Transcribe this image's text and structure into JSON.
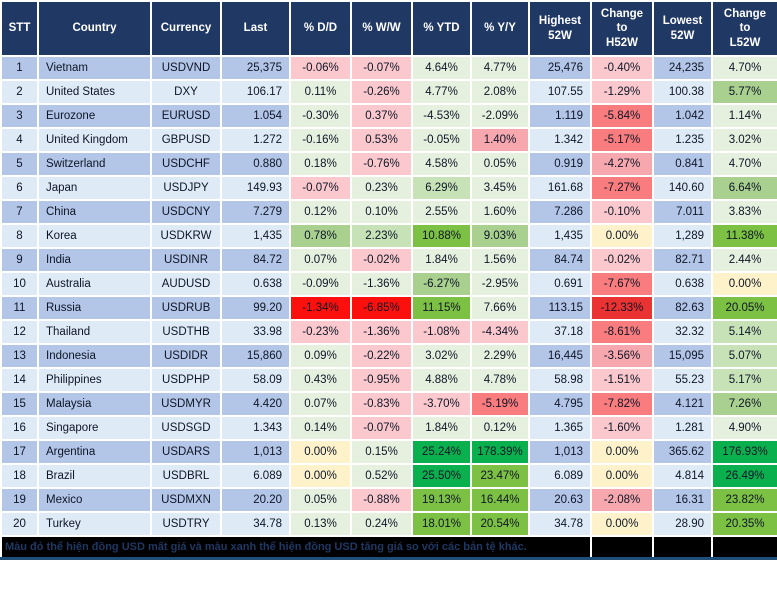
{
  "palette": {
    "header_bg": "#203864",
    "header_text": "#ffffff",
    "row_odd": "#b4c6e7",
    "row_even": "#deeaf6",
    "border": "#ffffff",
    "footer_bg": "#000000",
    "footer_text": "#1f3864",
    "p1": "#fbc9cd",
    "p2": "#f7a8ae",
    "p3": "#f97c7e",
    "p4": "#fc100d",
    "p5": "#e93231",
    "g1": "#e5f0de",
    "g2": "#c8e2b8",
    "g3": "#a9d08e",
    "g4": "#7cc143",
    "g5": "#0ab04e",
    "y": "#fef2cb"
  },
  "table": {
    "columns": [
      {
        "key": "stt",
        "label": "STT",
        "type": "stt"
      },
      {
        "key": "country",
        "label": "Country",
        "type": "country"
      },
      {
        "key": "currency",
        "label": "Currency",
        "type": "currency"
      },
      {
        "key": "last",
        "label": "Last",
        "type": "num"
      },
      {
        "key": "dd",
        "label": "% D/D",
        "type": "pct"
      },
      {
        "key": "ww",
        "label": "% W/W",
        "type": "pct"
      },
      {
        "key": "ytd",
        "label": "% YTD",
        "type": "pct"
      },
      {
        "key": "yy",
        "label": "% Y/Y",
        "type": "pct"
      },
      {
        "key": "high",
        "label": "Highest\n52W",
        "type": "num"
      },
      {
        "key": "chg_h",
        "label": "Change\nto\nH52W",
        "type": "pct"
      },
      {
        "key": "low",
        "label": "Lowest\n52W",
        "type": "num"
      },
      {
        "key": "chg_l",
        "label": "Change\nto\nL52W",
        "type": "pct"
      }
    ],
    "rows": [
      {
        "stt": "1",
        "country": "Vietnam",
        "currency": "USDVND",
        "last": "25,375",
        "dd": {
          "v": "-0.06%",
          "c": "p1"
        },
        "ww": {
          "v": "-0.07%",
          "c": "p1"
        },
        "ytd": {
          "v": "4.64%",
          "c": "g1"
        },
        "yy": {
          "v": "4.77%",
          "c": "g1"
        },
        "high": "25,476",
        "chg_h": {
          "v": "-0.40%",
          "c": "p1"
        },
        "low": "24,235",
        "chg_l": {
          "v": "4.70%",
          "c": "g1"
        }
      },
      {
        "stt": "2",
        "country": "United States",
        "currency": "DXY",
        "last": "106.17",
        "dd": {
          "v": "0.11%",
          "c": "g1"
        },
        "ww": {
          "v": "-0.26%",
          "c": "p1"
        },
        "ytd": {
          "v": "4.77%",
          "c": "g1"
        },
        "yy": {
          "v": "2.08%",
          "c": "g1"
        },
        "high": "107.55",
        "chg_h": {
          "v": "-1.29%",
          "c": "p1"
        },
        "low": "100.38",
        "chg_l": {
          "v": "5.77%",
          "c": "g3"
        }
      },
      {
        "stt": "3",
        "country": "Eurozone",
        "currency": "EURUSD",
        "last": "1.054",
        "dd": {
          "v": "-0.30%",
          "c": "g1"
        },
        "ww": {
          "v": "0.37%",
          "c": "p1"
        },
        "ytd": {
          "v": "-4.53%",
          "c": "g1"
        },
        "yy": {
          "v": "-2.09%",
          "c": "g1"
        },
        "high": "1.119",
        "chg_h": {
          "v": "-5.84%",
          "c": "p3"
        },
        "low": "1.042",
        "chg_l": {
          "v": "1.14%",
          "c": "g1"
        }
      },
      {
        "stt": "4",
        "country": "United Kingdom",
        "currency": "GBPUSD",
        "last": "1.272",
        "dd": {
          "v": "-0.16%",
          "c": "g1"
        },
        "ww": {
          "v": "0.53%",
          "c": "p1"
        },
        "ytd": {
          "v": "-0.05%",
          "c": "g1"
        },
        "yy": {
          "v": "1.40%",
          "c": "p2"
        },
        "high": "1.342",
        "chg_h": {
          "v": "-5.17%",
          "c": "p3"
        },
        "low": "1.235",
        "chg_l": {
          "v": "3.02%",
          "c": "g1"
        }
      },
      {
        "stt": "5",
        "country": "Switzerland",
        "currency": "USDCHF",
        "last": "0.880",
        "dd": {
          "v": "0.18%",
          "c": "g1"
        },
        "ww": {
          "v": "-0.76%",
          "c": "p1"
        },
        "ytd": {
          "v": "4.58%",
          "c": "g1"
        },
        "yy": {
          "v": "0.05%",
          "c": "g1"
        },
        "high": "0.919",
        "chg_h": {
          "v": "-4.27%",
          "c": "p2"
        },
        "low": "0.841",
        "chg_l": {
          "v": "4.70%",
          "c": "g1"
        }
      },
      {
        "stt": "6",
        "country": "Japan",
        "currency": "USDJPY",
        "last": "149.93",
        "dd": {
          "v": "-0.07%",
          "c": "p1"
        },
        "ww": {
          "v": "0.23%",
          "c": "g1"
        },
        "ytd": {
          "v": "6.29%",
          "c": "g2"
        },
        "yy": {
          "v": "3.45%",
          "c": "g1"
        },
        "high": "161.68",
        "chg_h": {
          "v": "-7.27%",
          "c": "p3"
        },
        "low": "140.60",
        "chg_l": {
          "v": "6.64%",
          "c": "g3"
        }
      },
      {
        "stt": "7",
        "country": "China",
        "currency": "USDCNY",
        "last": "7.279",
        "dd": {
          "v": "0.12%",
          "c": "g1"
        },
        "ww": {
          "v": "0.10%",
          "c": "g1"
        },
        "ytd": {
          "v": "2.55%",
          "c": "g1"
        },
        "yy": {
          "v": "1.60%",
          "c": "g1"
        },
        "high": "7.286",
        "chg_h": {
          "v": "-0.10%",
          "c": "p1"
        },
        "low": "7.011",
        "chg_l": {
          "v": "3.83%",
          "c": "g1"
        }
      },
      {
        "stt": "8",
        "country": "Korea",
        "currency": "USDKRW",
        "last": "1,435",
        "dd": {
          "v": "0.78%",
          "c": "g3"
        },
        "ww": {
          "v": "2.23%",
          "c": "g2"
        },
        "ytd": {
          "v": "10.88%",
          "c": "g4"
        },
        "yy": {
          "v": "9.03%",
          "c": "g3"
        },
        "high": "1,435",
        "chg_h": {
          "v": "0.00%",
          "c": "y"
        },
        "low": "1,289",
        "chg_l": {
          "v": "11.38%",
          "c": "g4"
        }
      },
      {
        "stt": "9",
        "country": "India",
        "currency": "USDINR",
        "last": "84.72",
        "dd": {
          "v": "0.07%",
          "c": "g1"
        },
        "ww": {
          "v": "-0.02%",
          "c": "p1"
        },
        "ytd": {
          "v": "1.84%",
          "c": "g1"
        },
        "yy": {
          "v": "1.56%",
          "c": "g1"
        },
        "high": "84.74",
        "chg_h": {
          "v": "-0.02%",
          "c": "p1"
        },
        "low": "82.71",
        "chg_l": {
          "v": "2.44%",
          "c": "g1"
        }
      },
      {
        "stt": "10",
        "country": "Australia",
        "currency": "AUDUSD",
        "last": "0.638",
        "dd": {
          "v": "-0.09%",
          "c": "g1"
        },
        "ww": {
          "v": "-1.36%",
          "c": "g1"
        },
        "ytd": {
          "v": "-6.27%",
          "c": "g3"
        },
        "yy": {
          "v": "-2.95%",
          "c": "g1"
        },
        "high": "0.691",
        "chg_h": {
          "v": "-7.67%",
          "c": "p3"
        },
        "low": "0.638",
        "chg_l": {
          "v": "0.00%",
          "c": "y"
        }
      },
      {
        "stt": "11",
        "country": "Russia",
        "currency": "USDRUB",
        "last": "99.20",
        "dd": {
          "v": "-1.34%",
          "c": "p4"
        },
        "ww": {
          "v": "-6.85%",
          "c": "p4"
        },
        "ytd": {
          "v": "11.15%",
          "c": "g4"
        },
        "yy": {
          "v": "7.66%",
          "c": "g1"
        },
        "high": "113.15",
        "chg_h": {
          "v": "-12.33%",
          "c": "p5"
        },
        "low": "82.63",
        "chg_l": {
          "v": "20.05%",
          "c": "g4"
        }
      },
      {
        "stt": "12",
        "country": "Thailand",
        "currency": "USDTHB",
        "last": "33.98",
        "dd": {
          "v": "-0.23%",
          "c": "p1"
        },
        "ww": {
          "v": "-1.36%",
          "c": "p1"
        },
        "ytd": {
          "v": "-1.08%",
          "c": "p1"
        },
        "yy": {
          "v": "-4.34%",
          "c": "p1"
        },
        "high": "37.18",
        "chg_h": {
          "v": "-8.61%",
          "c": "p3"
        },
        "low": "32.32",
        "chg_l": {
          "v": "5.14%",
          "c": "g2"
        }
      },
      {
        "stt": "13",
        "country": "Indonesia",
        "currency": "USDIDR",
        "last": "15,860",
        "dd": {
          "v": "0.09%",
          "c": "g1"
        },
        "ww": {
          "v": "-0.22%",
          "c": "p1"
        },
        "ytd": {
          "v": "3.02%",
          "c": "g1"
        },
        "yy": {
          "v": "2.29%",
          "c": "g1"
        },
        "high": "16,445",
        "chg_h": {
          "v": "-3.56%",
          "c": "p2"
        },
        "low": "15,095",
        "chg_l": {
          "v": "5.07%",
          "c": "g2"
        }
      },
      {
        "stt": "14",
        "country": "Philippines",
        "currency": "USDPHP",
        "last": "58.09",
        "dd": {
          "v": "0.43%",
          "c": "g1"
        },
        "ww": {
          "v": "-0.95%",
          "c": "p1"
        },
        "ytd": {
          "v": "4.88%",
          "c": "g1"
        },
        "yy": {
          "v": "4.78%",
          "c": "g1"
        },
        "high": "58.98",
        "chg_h": {
          "v": "-1.51%",
          "c": "p1"
        },
        "low": "55.23",
        "chg_l": {
          "v": "5.17%",
          "c": "g2"
        }
      },
      {
        "stt": "15",
        "country": "Malaysia",
        "currency": "USDMYR",
        "last": "4.420",
        "dd": {
          "v": "0.07%",
          "c": "g1"
        },
        "ww": {
          "v": "-0.83%",
          "c": "p1"
        },
        "ytd": {
          "v": "-3.70%",
          "c": "p1"
        },
        "yy": {
          "v": "-5.19%",
          "c": "p3"
        },
        "high": "4.795",
        "chg_h": {
          "v": "-7.82%",
          "c": "p3"
        },
        "low": "4.121",
        "chg_l": {
          "v": "7.26%",
          "c": "g3"
        }
      },
      {
        "stt": "16",
        "country": "Singapore",
        "currency": "USDSGD",
        "last": "1.343",
        "dd": {
          "v": "0.14%",
          "c": "g1"
        },
        "ww": {
          "v": "-0.07%",
          "c": "p1"
        },
        "ytd": {
          "v": "1.84%",
          "c": "g1"
        },
        "yy": {
          "v": "0.12%",
          "c": "g1"
        },
        "high": "1.365",
        "chg_h": {
          "v": "-1.60%",
          "c": "p1"
        },
        "low": "1.281",
        "chg_l": {
          "v": "4.90%",
          "c": "g1"
        }
      },
      {
        "stt": "17",
        "country": "Argentina",
        "currency": "USDARS",
        "last": "1,013",
        "dd": {
          "v": "0.00%",
          "c": "y"
        },
        "ww": {
          "v": "0.15%",
          "c": "g1"
        },
        "ytd": {
          "v": "25.24%",
          "c": "g5"
        },
        "yy": {
          "v": "178.39%",
          "c": "g5"
        },
        "high": "1,013",
        "chg_h": {
          "v": "0.00%",
          "c": "y"
        },
        "low": "365.62",
        "chg_l": {
          "v": "176.93%",
          "c": "g5"
        }
      },
      {
        "stt": "18",
        "country": "Brazil",
        "currency": "USDBRL",
        "last": "6.089",
        "dd": {
          "v": "0.00%",
          "c": "y"
        },
        "ww": {
          "v": "0.52%",
          "c": "g1"
        },
        "ytd": {
          "v": "25.50%",
          "c": "g5"
        },
        "yy": {
          "v": "23.47%",
          "c": "g4"
        },
        "high": "6.089",
        "chg_h": {
          "v": "0.00%",
          "c": "y"
        },
        "low": "4.814",
        "chg_l": {
          "v": "26.49%",
          "c": "g5"
        }
      },
      {
        "stt": "19",
        "country": "Mexico",
        "currency": "USDMXN",
        "last": "20.20",
        "dd": {
          "v": "0.05%",
          "c": "g1"
        },
        "ww": {
          "v": "-0.88%",
          "c": "p1"
        },
        "ytd": {
          "v": "19.13%",
          "c": "g4"
        },
        "yy": {
          "v": "16.44%",
          "c": "g4"
        },
        "high": "20.63",
        "chg_h": {
          "v": "-2.08%",
          "c": "p2"
        },
        "low": "16.31",
        "chg_l": {
          "v": "23.82%",
          "c": "g4"
        }
      },
      {
        "stt": "20",
        "country": "Turkey",
        "currency": "USDTRY",
        "last": "34.78",
        "dd": {
          "v": "0.13%",
          "c": "g1"
        },
        "ww": {
          "v": "0.24%",
          "c": "g1"
        },
        "ytd": {
          "v": "18.01%",
          "c": "g4"
        },
        "yy": {
          "v": "20.54%",
          "c": "g4"
        },
        "high": "34.78",
        "chg_h": {
          "v": "0.00%",
          "c": "y"
        },
        "low": "28.90",
        "chg_l": {
          "v": "20.35%",
          "c": "g4"
        }
      }
    ]
  },
  "footer": {
    "note": "Màu đỏ thể hiện đồng USD mất giá và màu xanh thể hiện đồng USD tăng giá so với các bản tệ khác."
  }
}
